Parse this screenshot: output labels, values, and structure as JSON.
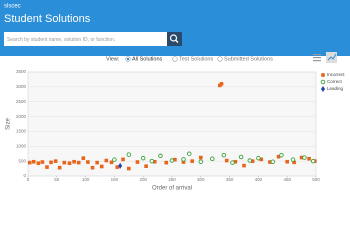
{
  "header": {
    "app": "slscec",
    "title": "Student Solutions"
  },
  "search": {
    "placeholder": "Search by student name, solution ID, or function."
  },
  "view": {
    "label": "View:",
    "options": [
      "All Solutions",
      "Test Solutions",
      "Submitted Solutions"
    ]
  },
  "chart_data": {
    "type": "scatter",
    "xlabel": "Order of arrival",
    "ylabel": "Size",
    "xlim": [
      0,
      500
    ],
    "xticks": [
      0,
      50,
      100,
      150,
      200,
      250,
      300,
      350,
      400,
      450,
      500
    ],
    "ylim": [
      0,
      3500
    ],
    "yticks": [
      0,
      500,
      1000,
      1500,
      2000,
      2500,
      3000,
      3500
    ],
    "grid": true,
    "legend": "right",
    "series": [
      {
        "name": "Incorrect",
        "color": "#e8641b",
        "marker": "square",
        "x": [
          3,
          10,
          18,
          25,
          33,
          40,
          48,
          55,
          63,
          72,
          80,
          88,
          96,
          104,
          112,
          120,
          128,
          136,
          145,
          155,
          165,
          175,
          190,
          205,
          220,
          240,
          255,
          270,
          285,
          300,
          333,
          336,
          345,
          360,
          375,
          390,
          405,
          420,
          435,
          450,
          462,
          475,
          488,
          498
        ],
        "values": [
          450,
          480,
          430,
          470,
          300,
          460,
          500,
          280,
          450,
          430,
          480,
          450,
          600,
          470,
          280,
          450,
          320,
          520,
          460,
          300,
          560,
          250,
          470,
          330,
          480,
          450,
          550,
          470,
          500,
          620,
          3050,
          3100,
          520,
          480,
          350,
          500,
          560,
          470,
          650,
          480,
          460,
          620,
          580,
          500
        ]
      },
      {
        "name": "Correct",
        "color": "#3aa13a",
        "marker": "circle",
        "x": [
          150,
          175,
          200,
          215,
          230,
          250,
          270,
          280,
          300,
          320,
          340,
          355,
          370,
          385,
          400,
          425,
          440,
          460,
          480,
          495
        ],
        "values": [
          550,
          720,
          600,
          500,
          680,
          520,
          560,
          750,
          480,
          580,
          700,
          450,
          640,
          520,
          600,
          480,
          700,
          550,
          620,
          500
        ]
      },
      {
        "name": "Leading",
        "color": "#2244aa",
        "marker": "diamond",
        "x": [
          160
        ],
        "values": [
          340
        ]
      }
    ]
  }
}
